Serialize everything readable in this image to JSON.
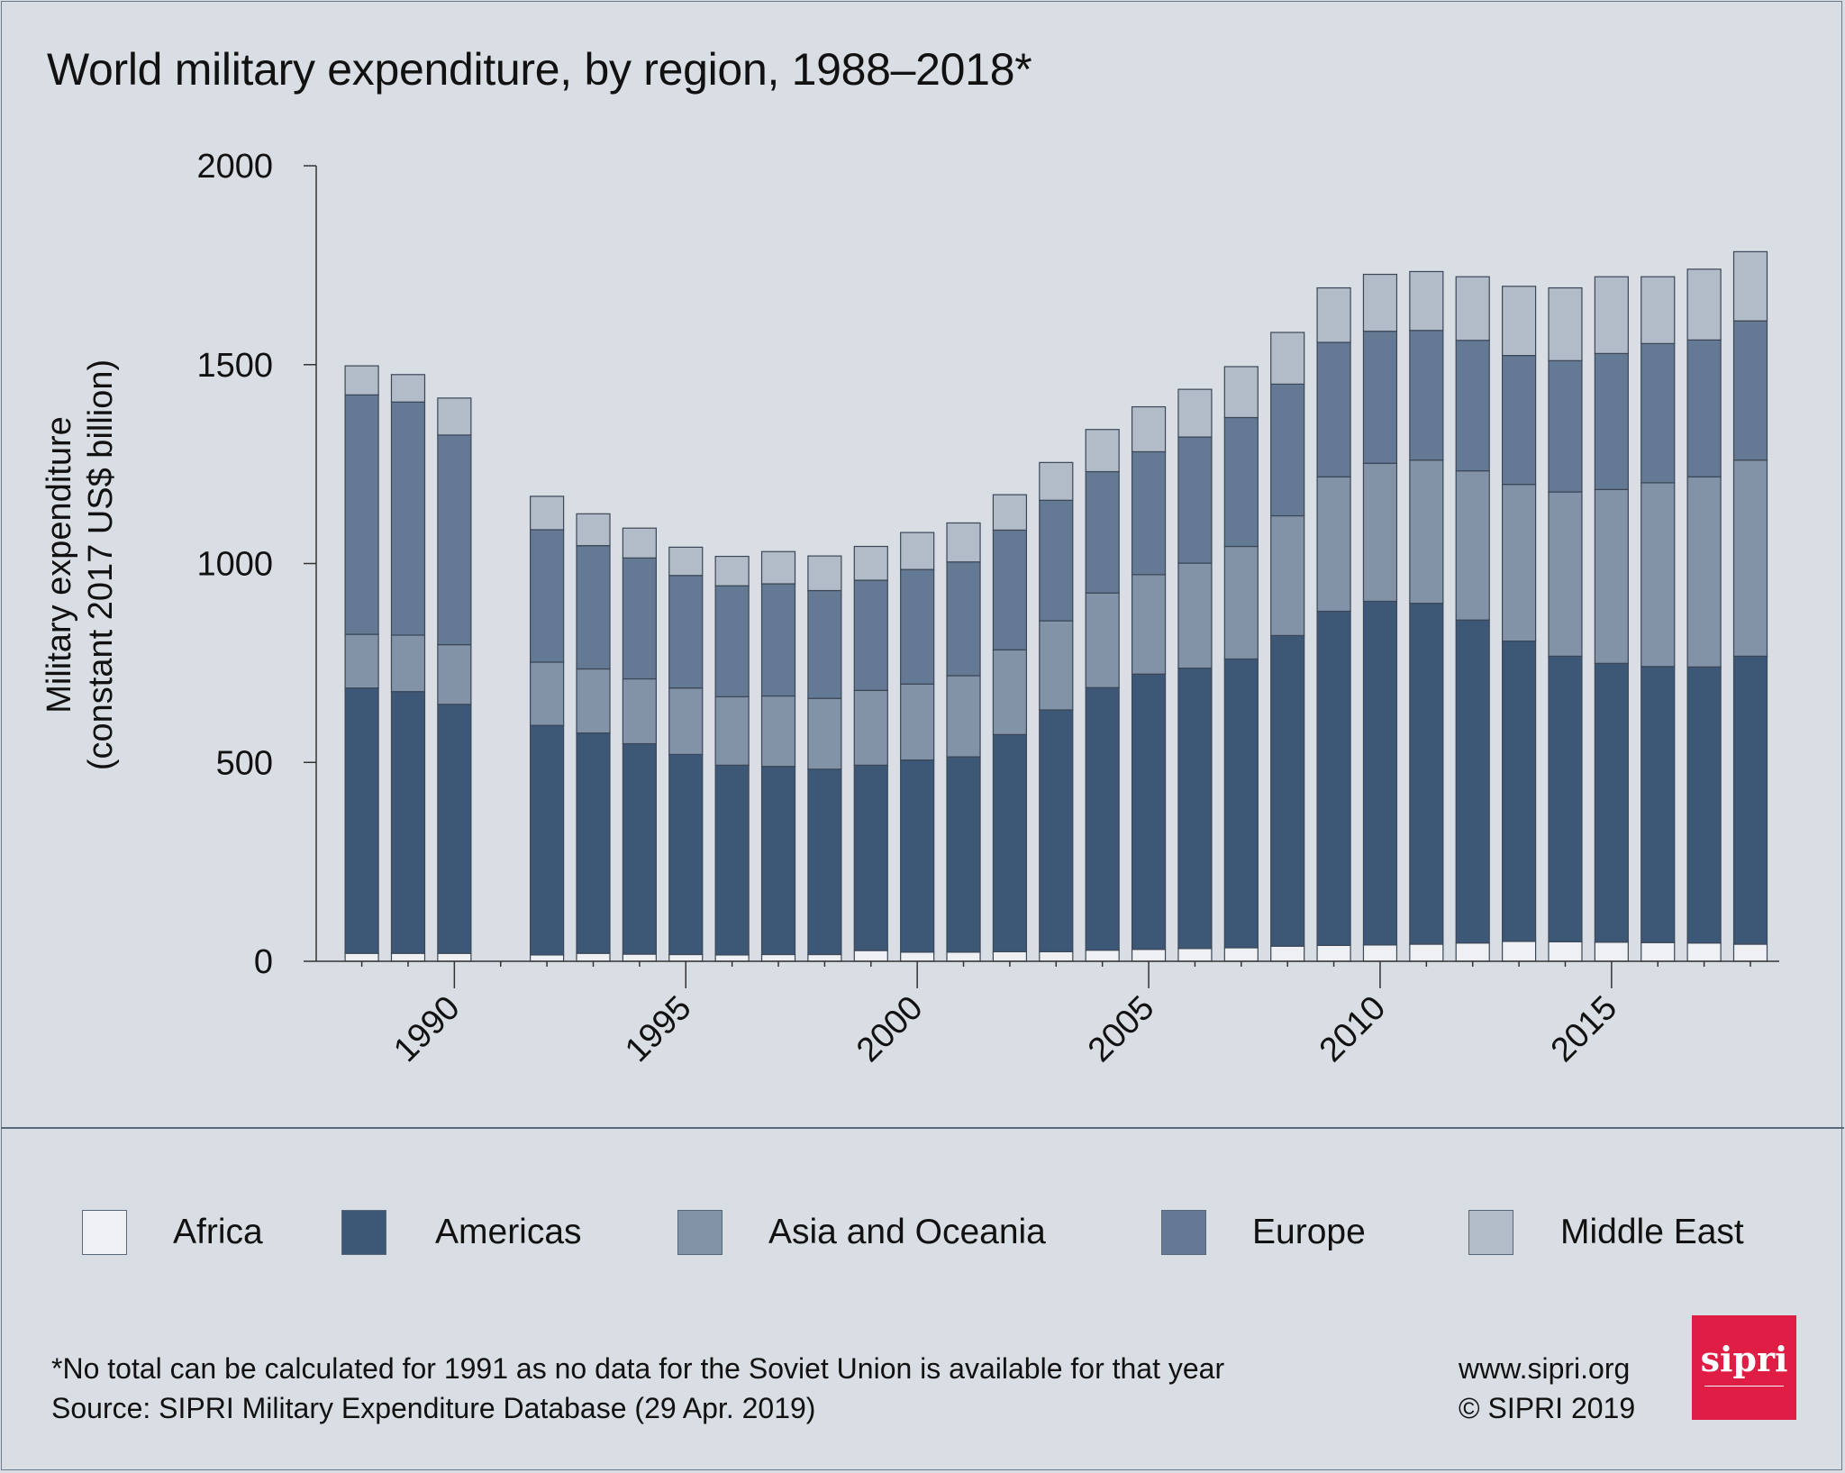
{
  "chart_data": {
    "type": "bar",
    "stacked": true,
    "title": "World military expenditure, by region, 1988–2018*",
    "xlabel": "",
    "ylabel": "Military expenditure (constant 2017 US$ billion)",
    "ylabel_lines": [
      "Military expenditure",
      "(constant 2017 US$ billion)"
    ],
    "ylim": [
      0,
      2000
    ],
    "yticks": [
      0,
      500,
      1000,
      1500,
      2000
    ],
    "xticks": [
      1990,
      1995,
      2000,
      2005,
      2010,
      2015
    ],
    "grid": false,
    "legend_position": "bottom",
    "categories": [
      1988,
      1989,
      1990,
      1991,
      1992,
      1993,
      1994,
      1995,
      1996,
      1997,
      1998,
      1999,
      2000,
      2001,
      2002,
      2003,
      2004,
      2005,
      2006,
      2007,
      2008,
      2009,
      2010,
      2011,
      2012,
      2013,
      2014,
      2015,
      2016,
      2017,
      2018
    ],
    "series": [
      {
        "name": "Africa",
        "color": "#eef0f3",
        "values": [
          20,
          20,
          20,
          null,
          16,
          20,
          18,
          17,
          16,
          17,
          17,
          27,
          23,
          23,
          24,
          24,
          28,
          30,
          32,
          34,
          38,
          40,
          41,
          43,
          46,
          50,
          49,
          48,
          47,
          46,
          43
        ]
      },
      {
        "name": "Americas",
        "color": "#3d5877",
        "values": [
          667,
          658,
          626,
          null,
          577,
          554,
          529,
          503,
          477,
          473,
          466,
          466,
          483,
          491,
          546,
          608,
          660,
          692,
          705,
          726,
          781,
          840,
          864,
          857,
          812,
          755,
          718,
          701,
          694,
          694,
          724
        ]
      },
      {
        "name": "Asia and Oceania",
        "color": "#8293a8",
        "values": [
          135,
          142,
          150,
          null,
          159,
          161,
          163,
          167,
          172,
          177,
          178,
          188,
          191,
          204,
          213,
          224,
          238,
          250,
          264,
          283,
          301,
          338,
          347,
          360,
          375,
          394,
          413,
          437,
          462,
          478,
          493
        ]
      },
      {
        "name": "Europe",
        "color": "#647a94",
        "values": [
          602,
          586,
          527,
          null,
          333,
          310,
          304,
          283,
          279,
          282,
          271,
          277,
          288,
          286,
          301,
          303,
          305,
          309,
          317,
          324,
          331,
          338,
          332,
          326,
          328,
          324,
          330,
          342,
          350,
          344,
          350
        ]
      },
      {
        "name": "Middle East",
        "color": "#b2bcc8",
        "values": [
          73,
          69,
          93,
          null,
          84,
          80,
          75,
          71,
          74,
          81,
          87,
          85,
          93,
          98,
          89,
          95,
          106,
          113,
          120,
          128,
          130,
          137,
          143,
          148,
          160,
          174,
          183,
          193,
          168,
          178,
          174
        ]
      }
    ]
  },
  "footer": {
    "note": "*No total can be calculated for 1991 as no data for the Soviet Union is available for that year",
    "source": "Source: SIPRI Military Expenditure Database (29 Apr. 2019)",
    "url": "www.sipri.org",
    "copyright": "© SIPRI 2019",
    "logo_text": "sipri"
  },
  "colors": {
    "background": "#d9dee4",
    "logo": "#e01e45"
  }
}
